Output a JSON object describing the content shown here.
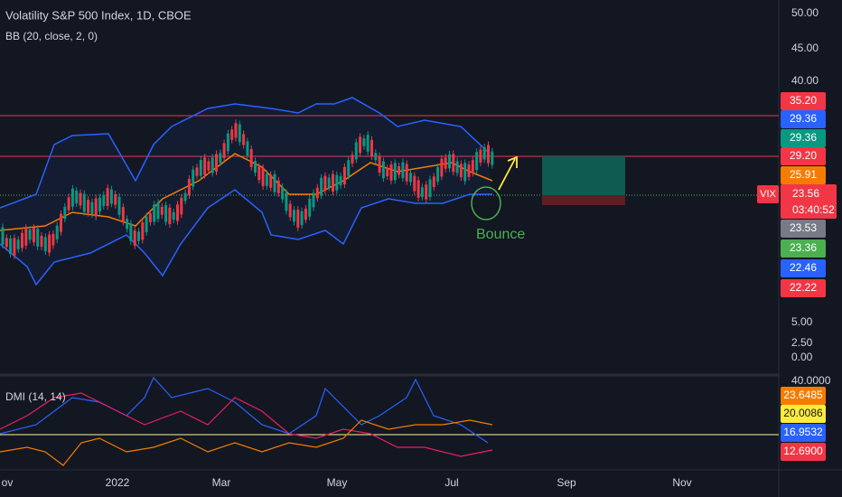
{
  "header": {
    "title": "Volatility S&P 500 Index, 1D, CBOE",
    "indicator": "BB (20, close, 2, 0)"
  },
  "price_axis": [
    "50.00",
    "45.00",
    "40.00",
    "5.00",
    "2.50",
    "0.00"
  ],
  "price_tags": [
    {
      "text": "35.20",
      "color": "#f23645"
    },
    {
      "text": "29.36",
      "color": "#2962ff"
    },
    {
      "text": "29.36",
      "color": "#089981"
    },
    {
      "text": "29.20",
      "color": "#f23645"
    },
    {
      "text": "25.91",
      "color": "#f57c00"
    },
    {
      "text": "23.53",
      "color": "#787b86"
    },
    {
      "text": "23.36",
      "color": "#4caf50"
    },
    {
      "text": "22.46",
      "color": "#2962ff"
    },
    {
      "text": "22.22",
      "color": "#f23645"
    }
  ],
  "symbol": "VIX",
  "price": "23.56",
  "countdown": "03:40:52",
  "annotation": "Bounce",
  "dmi": {
    "label": "DMI (14, 14)",
    "top": "40.0000",
    "tags": [
      {
        "text": "23.6485",
        "color": "#f57c00"
      },
      {
        "text": "20.0086",
        "color": "#ffeb3b"
      },
      {
        "text": "16.9532",
        "color": "#2962ff"
      },
      {
        "text": "12.6900",
        "color": "#f23645"
      }
    ]
  },
  "time_axis": [
    "ov",
    "2022",
    "Mar",
    "May",
    "Jul",
    "Sep",
    "Nov"
  ]
}
